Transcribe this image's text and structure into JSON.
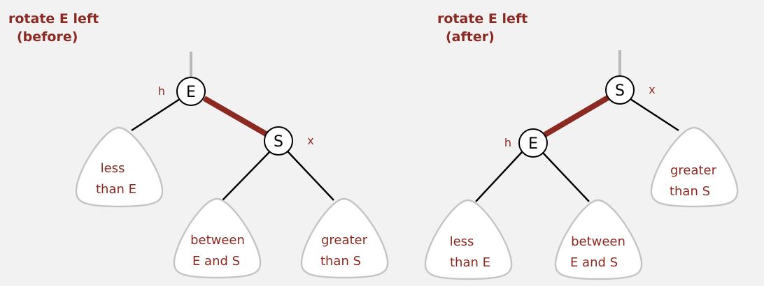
{
  "panels": [
    {
      "title_line1": "rotate E left",
      "title_line2": "(before)",
      "labels": {
        "h": "h",
        "x": "x"
      },
      "nodes": {
        "top": "E",
        "child": "S"
      },
      "subtrees": {
        "a": [
          "less",
          "than E"
        ],
        "b": [
          "between",
          "E and S"
        ],
        "c": [
          "greater",
          "than S"
        ]
      }
    },
    {
      "title_line1": "rotate E left",
      "title_line2": "(after)",
      "labels": {
        "h": "h",
        "x": "x"
      },
      "nodes": {
        "top": "S",
        "child": "E"
      },
      "subtrees": {
        "a": [
          "less",
          "than E"
        ],
        "b": [
          "between",
          "E and S"
        ],
        "c": [
          "greater",
          "than S"
        ]
      }
    }
  ],
  "colors": {
    "accent": "#8b2a22",
    "background": "#f2f2f2",
    "subtree_border": "#c4c4c4",
    "parent_link": "#b9b9b9"
  }
}
